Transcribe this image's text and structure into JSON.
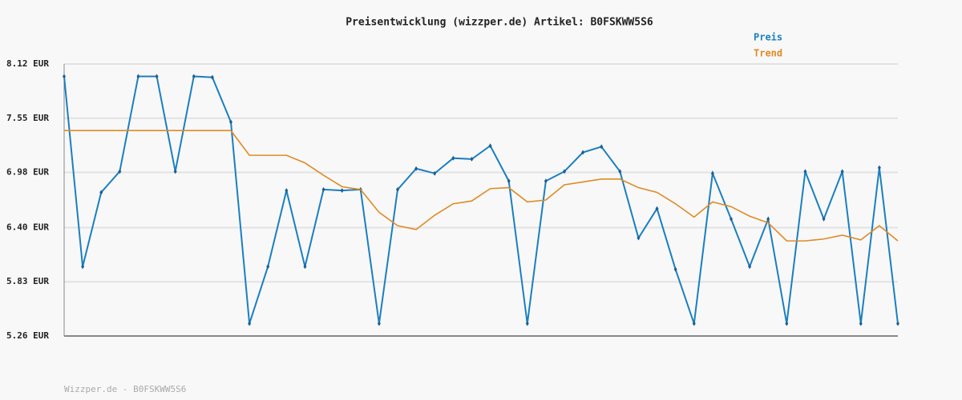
{
  "chart_data": {
    "type": "line",
    "title": "Preisentwicklung (wizzper.de) Artikel: B0FSKWW5S6",
    "footer": "Wizzper.de - B0FSKWW5S6",
    "categories": [
      null,
      null,
      null,
      null,
      null,
      null,
      null,
      null,
      null,
      null,
      null,
      null,
      null,
      null,
      null,
      null,
      null,
      null,
      null,
      null,
      null,
      null,
      null,
      null,
      null,
      null,
      null,
      null,
      null,
      null,
      null,
      null,
      null,
      null,
      null,
      null,
      null,
      null,
      null,
      null,
      null,
      null,
      null,
      null,
      null,
      null
    ],
    "series": [
      {
        "name": "Preis",
        "color": "#1a7fc1",
        "markers": true,
        "values": [
          7.99,
          5.99,
          6.77,
          6.99,
          7.99,
          7.99,
          6.99,
          7.99,
          7.98,
          7.51,
          5.39,
          5.99,
          6.79,
          5.99,
          6.8,
          6.79,
          6.8,
          5.39,
          6.8,
          7.02,
          6.97,
          7.13,
          7.12,
          7.26,
          6.89,
          5.39,
          6.89,
          6.99,
          7.19,
          7.25,
          6.99,
          6.29,
          6.6,
          5.96,
          5.39,
          6.97,
          6.49,
          5.99,
          6.49,
          5.39,
          6.99,
          6.49,
          6.99,
          5.39,
          7.03,
          5.39
        ]
      },
      {
        "name": "Trend",
        "color": "#e08a25",
        "markers": false,
        "values": [
          7.42,
          7.42,
          7.42,
          7.42,
          7.42,
          7.42,
          7.42,
          7.42,
          7.42,
          7.42,
          7.16,
          7.16,
          7.16,
          7.08,
          6.95,
          6.83,
          6.8,
          6.56,
          6.42,
          6.38,
          6.53,
          6.65,
          6.68,
          6.81,
          6.82,
          6.67,
          6.69,
          6.85,
          6.88,
          6.91,
          6.91,
          6.82,
          6.77,
          6.65,
          6.51,
          6.67,
          6.62,
          6.52,
          6.45,
          6.26,
          6.26,
          6.28,
          6.32,
          6.27,
          6.42,
          6.26
        ]
      }
    ],
    "ylim": [
      5.26,
      8.12
    ],
    "yticks": [
      {
        "value": 5.26,
        "label": "5.26 EUR"
      },
      {
        "value": 5.83,
        "label": "5.83 EUR"
      },
      {
        "value": 6.4,
        "label": "6.40 EUR"
      },
      {
        "value": 6.98,
        "label": "6.98 EUR"
      },
      {
        "value": 7.55,
        "label": "7.55 EUR"
      },
      {
        "value": 8.12,
        "label": "8.12 EUR"
      }
    ],
    "grid": true,
    "legend": "top-right"
  }
}
